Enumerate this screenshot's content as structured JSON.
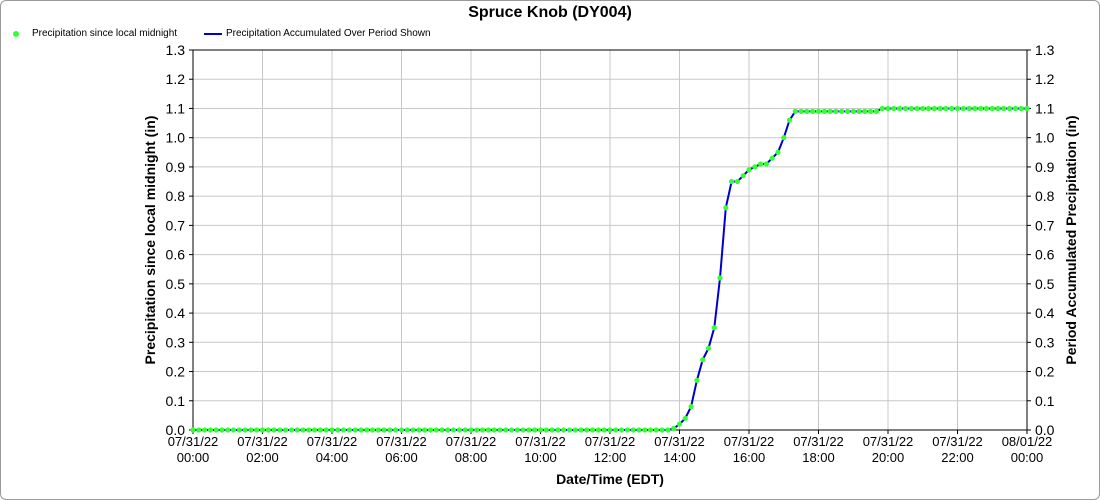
{
  "chart_data": {
    "type": "line",
    "title": "Spruce Knob (DY004)",
    "xlabel": "Date/Time (EDT)",
    "ylabel": "Precipitation since local midnight (in)",
    "y2label": "Period Accumulated Precipitation (in)",
    "ylim": [
      0,
      1.3
    ],
    "y2lim": [
      0,
      1.3
    ],
    "xlim": [
      "07/31/22 00:00",
      "08/01/22 00:00"
    ],
    "grid": true,
    "legend_placement": "top-left",
    "yticks": [
      "0.0",
      "0.1",
      "0.2",
      "0.3",
      "0.4",
      "0.5",
      "0.6",
      "0.7",
      "0.8",
      "0.9",
      "1.0",
      "1.1",
      "1.2",
      "1.3"
    ],
    "xticks": [
      {
        "date": "07/31/22",
        "time": "00:00"
      },
      {
        "date": "07/31/22",
        "time": "02:00"
      },
      {
        "date": "07/31/22",
        "time": "04:00"
      },
      {
        "date": "07/31/22",
        "time": "06:00"
      },
      {
        "date": "07/31/22",
        "time": "08:00"
      },
      {
        "date": "07/31/22",
        "time": "10:00"
      },
      {
        "date": "07/31/22",
        "time": "12:00"
      },
      {
        "date": "07/31/22",
        "time": "14:00"
      },
      {
        "date": "07/31/22",
        "time": "16:00"
      },
      {
        "date": "07/31/22",
        "time": "18:00"
      },
      {
        "date": "07/31/22",
        "time": "20:00"
      },
      {
        "date": "07/31/22",
        "time": "22:00"
      },
      {
        "date": "08/01/22",
        "time": "00:00"
      }
    ],
    "series": [
      {
        "name": "Precipitation since local midnight",
        "style": "markers",
        "color": "#33ff33",
        "points": [
          [
            "07/31/22 00:00",
            0
          ],
          [
            "07/31/22 00:10",
            0
          ],
          [
            "07/31/22 00:20",
            0
          ],
          [
            "07/31/22 00:30",
            0
          ],
          [
            "07/31/22 00:40",
            0
          ],
          [
            "07/31/22 00:50",
            0
          ],
          [
            "07/31/22 01:00",
            0
          ],
          [
            "07/31/22 01:10",
            0
          ],
          [
            "07/31/22 01:20",
            0
          ],
          [
            "07/31/22 01:30",
            0
          ],
          [
            "07/31/22 01:40",
            0
          ],
          [
            "07/31/22 01:50",
            0
          ],
          [
            "07/31/22 02:00",
            0
          ],
          [
            "07/31/22 02:10",
            0
          ],
          [
            "07/31/22 02:20",
            0
          ],
          [
            "07/31/22 02:30",
            0
          ],
          [
            "07/31/22 02:40",
            0
          ],
          [
            "07/31/22 02:50",
            0
          ],
          [
            "07/31/22 03:00",
            0
          ],
          [
            "07/31/22 03:10",
            0
          ],
          [
            "07/31/22 03:20",
            0
          ],
          [
            "07/31/22 03:30",
            0
          ],
          [
            "07/31/22 03:40",
            0
          ],
          [
            "07/31/22 03:50",
            0
          ],
          [
            "07/31/22 04:00",
            0
          ],
          [
            "07/31/22 04:10",
            0
          ],
          [
            "07/31/22 04:20",
            0
          ],
          [
            "07/31/22 04:30",
            0
          ],
          [
            "07/31/22 04:40",
            0
          ],
          [
            "07/31/22 04:50",
            0
          ],
          [
            "07/31/22 05:00",
            0
          ],
          [
            "07/31/22 05:10",
            0
          ],
          [
            "07/31/22 05:20",
            0
          ],
          [
            "07/31/22 05:30",
            0
          ],
          [
            "07/31/22 05:40",
            0
          ],
          [
            "07/31/22 05:50",
            0
          ],
          [
            "07/31/22 06:00",
            0
          ],
          [
            "07/31/22 06:10",
            0
          ],
          [
            "07/31/22 06:20",
            0
          ],
          [
            "07/31/22 06:30",
            0
          ],
          [
            "07/31/22 06:40",
            0
          ],
          [
            "07/31/22 06:50",
            0
          ],
          [
            "07/31/22 07:00",
            0
          ],
          [
            "07/31/22 07:10",
            0
          ],
          [
            "07/31/22 07:20",
            0
          ],
          [
            "07/31/22 07:30",
            0
          ],
          [
            "07/31/22 07:40",
            0
          ],
          [
            "07/31/22 07:50",
            0
          ],
          [
            "07/31/22 08:00",
            0
          ],
          [
            "07/31/22 08:10",
            0
          ],
          [
            "07/31/22 08:20",
            0
          ],
          [
            "07/31/22 08:30",
            0
          ],
          [
            "07/31/22 08:40",
            0
          ],
          [
            "07/31/22 08:50",
            0
          ],
          [
            "07/31/22 09:00",
            0
          ],
          [
            "07/31/22 09:10",
            0
          ],
          [
            "07/31/22 09:20",
            0
          ],
          [
            "07/31/22 09:30",
            0
          ],
          [
            "07/31/22 09:40",
            0
          ],
          [
            "07/31/22 09:50",
            0
          ],
          [
            "07/31/22 10:00",
            0
          ],
          [
            "07/31/22 10:10",
            0
          ],
          [
            "07/31/22 10:20",
            0
          ],
          [
            "07/31/22 10:30",
            0
          ],
          [
            "07/31/22 10:40",
            0
          ],
          [
            "07/31/22 10:50",
            0
          ],
          [
            "07/31/22 11:00",
            0
          ],
          [
            "07/31/22 11:10",
            0
          ],
          [
            "07/31/22 11:20",
            0
          ],
          [
            "07/31/22 11:30",
            0
          ],
          [
            "07/31/22 11:40",
            0
          ],
          [
            "07/31/22 11:50",
            0
          ],
          [
            "07/31/22 12:00",
            0
          ],
          [
            "07/31/22 12:10",
            0
          ],
          [
            "07/31/22 12:20",
            0
          ],
          [
            "07/31/22 12:30",
            0
          ],
          [
            "07/31/22 12:40",
            0
          ],
          [
            "07/31/22 12:50",
            0
          ],
          [
            "07/31/22 13:00",
            0
          ],
          [
            "07/31/22 13:10",
            0
          ],
          [
            "07/31/22 13:20",
            0
          ],
          [
            "07/31/22 13:30",
            0
          ],
          [
            "07/31/22 13:40",
            0
          ],
          [
            "07/31/22 13:50",
            0.005
          ],
          [
            "07/31/22 14:00",
            0.02
          ],
          [
            "07/31/22 14:10",
            0.04
          ],
          [
            "07/31/22 14:20",
            0.08
          ],
          [
            "07/31/22 14:30",
            0.17
          ],
          [
            "07/31/22 14:40",
            0.24
          ],
          [
            "07/31/22 14:50",
            0.28
          ],
          [
            "07/31/22 15:00",
            0.35
          ],
          [
            "07/31/22 15:10",
            0.52
          ],
          [
            "07/31/22 15:20",
            0.76
          ],
          [
            "07/31/22 15:30",
            0.85
          ],
          [
            "07/31/22 15:40",
            0.85
          ],
          [
            "07/31/22 15:50",
            0.87
          ],
          [
            "07/31/22 16:00",
            0.89
          ],
          [
            "07/31/22 16:10",
            0.9
          ],
          [
            "07/31/22 16:20",
            0.91
          ],
          [
            "07/31/22 16:30",
            0.91
          ],
          [
            "07/31/22 16:40",
            0.93
          ],
          [
            "07/31/22 16:50",
            0.95
          ],
          [
            "07/31/22 17:00",
            1.0
          ],
          [
            "07/31/22 17:10",
            1.06
          ],
          [
            "07/31/22 17:20",
            1.09
          ],
          [
            "07/31/22 17:30",
            1.09
          ],
          [
            "07/31/22 17:40",
            1.09
          ],
          [
            "07/31/22 17:50",
            1.09
          ],
          [
            "07/31/22 18:00",
            1.09
          ],
          [
            "07/31/22 18:10",
            1.09
          ],
          [
            "07/31/22 18:20",
            1.09
          ],
          [
            "07/31/22 18:30",
            1.09
          ],
          [
            "07/31/22 18:40",
            1.09
          ],
          [
            "07/31/22 18:50",
            1.09
          ],
          [
            "07/31/22 19:00",
            1.09
          ],
          [
            "07/31/22 19:10",
            1.09
          ],
          [
            "07/31/22 19:20",
            1.09
          ],
          [
            "07/31/22 19:30",
            1.09
          ],
          [
            "07/31/22 19:40",
            1.09
          ],
          [
            "07/31/22 19:50",
            1.1
          ],
          [
            "07/31/22 20:00",
            1.1
          ],
          [
            "07/31/22 20:10",
            1.1
          ],
          [
            "07/31/22 20:20",
            1.1
          ],
          [
            "07/31/22 20:30",
            1.1
          ],
          [
            "07/31/22 20:40",
            1.1
          ],
          [
            "07/31/22 20:50",
            1.1
          ],
          [
            "07/31/22 21:00",
            1.1
          ],
          [
            "07/31/22 21:10",
            1.1
          ],
          [
            "07/31/22 21:20",
            1.1
          ],
          [
            "07/31/22 21:30",
            1.1
          ],
          [
            "07/31/22 21:40",
            1.1
          ],
          [
            "07/31/22 21:50",
            1.1
          ],
          [
            "07/31/22 22:00",
            1.1
          ],
          [
            "07/31/22 22:10",
            1.1
          ],
          [
            "07/31/22 22:20",
            1.1
          ],
          [
            "07/31/22 22:30",
            1.1
          ],
          [
            "07/31/22 22:40",
            1.1
          ],
          [
            "07/31/22 22:50",
            1.1
          ],
          [
            "07/31/22 23:00",
            1.1
          ],
          [
            "07/31/22 23:10",
            1.1
          ],
          [
            "07/31/22 23:20",
            1.1
          ],
          [
            "07/31/22 23:30",
            1.1
          ],
          [
            "07/31/22 23:40",
            1.1
          ],
          [
            "07/31/22 23:50",
            1.1
          ],
          [
            "08/01/22 00:00",
            1.1
          ]
        ]
      },
      {
        "name": "Precipitation Accumulated Over Period Shown",
        "style": "line",
        "color": "#0000cc",
        "points": [
          [
            "07/31/22 00:00",
            0
          ],
          [
            "07/31/22 13:40",
            0
          ],
          [
            "07/31/22 13:50",
            0.005
          ],
          [
            "07/31/22 14:00",
            0.02
          ],
          [
            "07/31/22 14:10",
            0.04
          ],
          [
            "07/31/22 14:20",
            0.08
          ],
          [
            "07/31/22 14:30",
            0.17
          ],
          [
            "07/31/22 14:40",
            0.24
          ],
          [
            "07/31/22 14:50",
            0.28
          ],
          [
            "07/31/22 15:00",
            0.35
          ],
          [
            "07/31/22 15:10",
            0.52
          ],
          [
            "07/31/22 15:20",
            0.76
          ],
          [
            "07/31/22 15:30",
            0.85
          ],
          [
            "07/31/22 15:40",
            0.85
          ],
          [
            "07/31/22 15:50",
            0.87
          ],
          [
            "07/31/22 16:00",
            0.89
          ],
          [
            "07/31/22 16:10",
            0.9
          ],
          [
            "07/31/22 16:20",
            0.91
          ],
          [
            "07/31/22 16:30",
            0.91
          ],
          [
            "07/31/22 16:40",
            0.93
          ],
          [
            "07/31/22 16:50",
            0.95
          ],
          [
            "07/31/22 17:00",
            1.0
          ],
          [
            "07/31/22 17:10",
            1.06
          ],
          [
            "07/31/22 17:20",
            1.09
          ],
          [
            "07/31/22 19:40",
            1.09
          ],
          [
            "07/31/22 19:50",
            1.1
          ],
          [
            "08/01/22 00:00",
            1.1
          ]
        ]
      }
    ]
  }
}
